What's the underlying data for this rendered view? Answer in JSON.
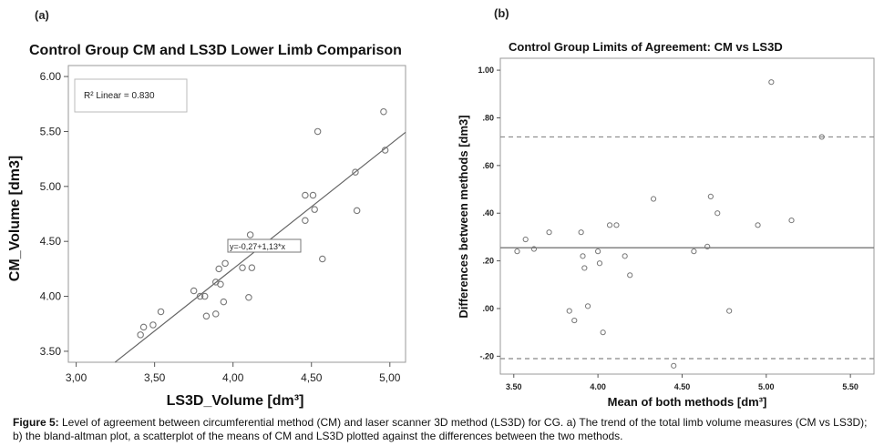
{
  "panels": {
    "a_label": "(a)",
    "b_label": "(b)"
  },
  "chart_data": [
    {
      "type": "scatter",
      "title": "Control Group CM and LS3D Lower Limb Comparison",
      "xlabel": "LS3D_Volume [dm³]",
      "ylabel": "CM_Volume [dm3]",
      "xlim": [
        2.95,
        5.1
      ],
      "ylim": [
        3.4,
        6.1
      ],
      "xticks": [
        3.0,
        3.5,
        4.0,
        4.5,
        5.0
      ],
      "xtick_labels": [
        "3,00",
        "3,50",
        "4,00",
        "4,50",
        "5,00"
      ],
      "yticks": [
        3.5,
        4.0,
        4.5,
        5.0,
        5.5,
        6.0
      ],
      "ytick_labels": [
        "3.50",
        "4.00",
        "4.50",
        "5.00",
        "5.50",
        "6.00"
      ],
      "r2_label": "R² Linear = 0.830",
      "fit_label": "y=-0,27+1,13*x",
      "fit": {
        "intercept": -0.27,
        "slope": 1.13
      },
      "points": [
        [
          3.41,
          3.65
        ],
        [
          3.43,
          3.72
        ],
        [
          3.49,
          3.74
        ],
        [
          3.54,
          3.86
        ],
        [
          3.75,
          4.05
        ],
        [
          3.79,
          4.0
        ],
        [
          3.82,
          4.0
        ],
        [
          3.83,
          3.82
        ],
        [
          3.89,
          3.84
        ],
        [
          3.89,
          4.13
        ],
        [
          3.91,
          4.25
        ],
        [
          3.92,
          4.11
        ],
        [
          3.94,
          3.95
        ],
        [
          3.95,
          4.3
        ],
        [
          4.06,
          4.26
        ],
        [
          4.1,
          3.99
        ],
        [
          4.11,
          4.56
        ],
        [
          4.12,
          4.26
        ],
        [
          4.46,
          4.69
        ],
        [
          4.46,
          4.92
        ],
        [
          4.51,
          4.92
        ],
        [
          4.52,
          4.79
        ],
        [
          4.54,
          5.5
        ],
        [
          4.57,
          4.34
        ],
        [
          4.78,
          5.13
        ],
        [
          4.79,
          4.78
        ],
        [
          4.96,
          5.68
        ],
        [
          4.97,
          5.33
        ]
      ]
    },
    {
      "type": "scatter",
      "title": "Control Group Limits of Agreement: CM vs LS3D",
      "xlabel": "Mean of both methods [dm³]",
      "ylabel": "Differences between methods [dm3]",
      "xlim": [
        3.42,
        5.64
      ],
      "ylim": [
        -0.275,
        1.05
      ],
      "xticks": [
        3.5,
        4.0,
        4.5,
        5.0,
        5.5
      ],
      "xtick_labels": [
        "3.50",
        "4.00",
        "4.50",
        "5.00",
        "5.50"
      ],
      "yticks": [
        -0.2,
        0.0,
        0.2,
        0.4,
        0.6,
        0.8,
        1.0
      ],
      "ytick_labels": [
        "-.20",
        ".00",
        ".20",
        ".40",
        ".60",
        ".80",
        "1.00"
      ],
      "mean_line": 0.255,
      "upper_loa": 0.72,
      "lower_loa": -0.21,
      "points": [
        [
          3.52,
          0.24
        ],
        [
          3.57,
          0.29
        ],
        [
          3.62,
          0.25
        ],
        [
          3.71,
          0.32
        ],
        [
          3.83,
          -0.01
        ],
        [
          3.86,
          -0.05
        ],
        [
          3.9,
          0.32
        ],
        [
          3.91,
          0.22
        ],
        [
          3.92,
          0.17
        ],
        [
          3.94,
          0.01
        ],
        [
          4.0,
          0.24
        ],
        [
          4.01,
          0.19
        ],
        [
          4.03,
          -0.1
        ],
        [
          4.07,
          0.35
        ],
        [
          4.11,
          0.35
        ],
        [
          4.16,
          0.22
        ],
        [
          4.19,
          0.14
        ],
        [
          4.33,
          0.46
        ],
        [
          4.45,
          -0.24
        ],
        [
          4.57,
          0.24
        ],
        [
          4.65,
          0.26
        ],
        [
          4.67,
          0.47
        ],
        [
          4.71,
          0.4
        ],
        [
          4.78,
          -0.01
        ],
        [
          4.95,
          0.35
        ],
        [
          5.03,
          0.95
        ],
        [
          5.15,
          0.37
        ],
        [
          5.33,
          0.72
        ]
      ]
    }
  ],
  "caption": {
    "label": "Figure 5:",
    "text": " Level of agreement between circumferential method (CM) and laser scanner 3D method (LS3D) for CG. a) The trend of the total limb volume measures (CM vs LS3D); b) the bland-altman plot, a scatterplot of the means of CM and LS3D plotted against the differences between the two methods."
  }
}
